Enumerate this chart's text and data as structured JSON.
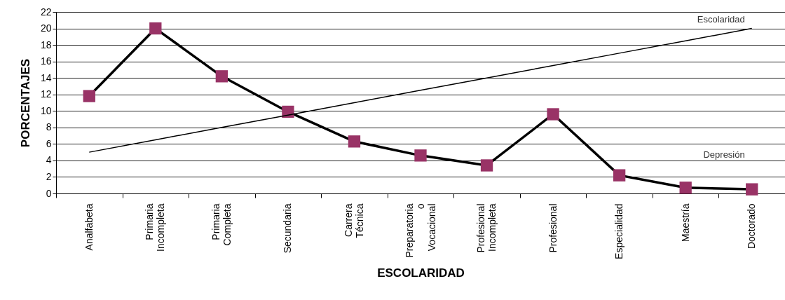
{
  "chart_data": {
    "type": "line",
    "xlabel": "ESCOLARIDAD",
    "ylabel": "PORCENTAJES",
    "categories": [
      "Analfabeta",
      "Primaria Incompleta",
      "Primaria Completa",
      "Secundaria",
      "Carrera Técnica",
      "Preparatoria o Vocacional",
      "Profesional Incompleta",
      "Profesional",
      "Especialidad",
      "Maestría",
      "Doctorado"
    ],
    "series": [
      {
        "name": "Depresión",
        "color": "#993366",
        "marker": "square",
        "values": [
          11.8,
          20,
          14.2,
          9.9,
          6.3,
          4.6,
          3.4,
          9.6,
          2.2,
          0.7,
          0.5
        ]
      },
      {
        "name": "Escolaridad",
        "color": "#000000",
        "marker": "none",
        "values": [
          5,
          6.5,
          8,
          9.5,
          11,
          12.5,
          14,
          15.5,
          17,
          18.5,
          20
        ]
      }
    ],
    "ylim": [
      0,
      22
    ],
    "yticks": [
      0,
      2,
      4,
      6,
      8,
      10,
      12,
      14,
      16,
      18,
      20,
      22
    ],
    "grid": "y"
  }
}
